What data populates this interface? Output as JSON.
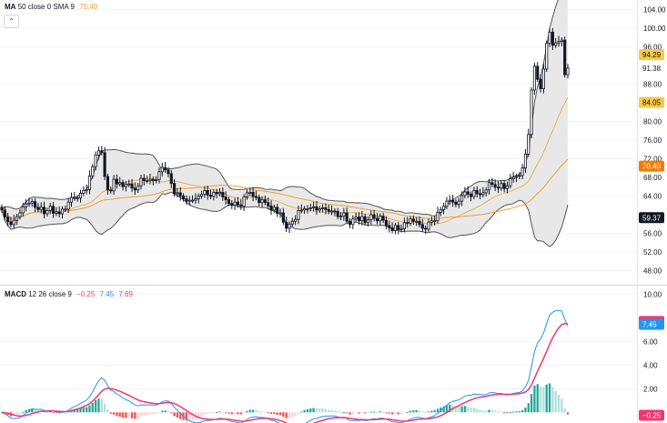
{
  "legend_top": {
    "ma": "MA",
    "params": "50 close 0 SMA 9",
    "value": "70.40"
  },
  "legend_bottom": {
    "macd": "MACD",
    "params": "12 26 close 9",
    "hist": "−0.25",
    "macd_val": "7.45",
    "signal": "7.69"
  },
  "colors": {
    "up_candle": "#ffffff",
    "down_candle": "#131722",
    "ma": "#f0a030",
    "band": "#555555",
    "band_fill": "#e6e6e6",
    "macd_line": "#2196f3",
    "signal_line": "#f23670",
    "hist_up_strong": "#26a69a",
    "hist_up_weak": "#b2dfdb",
    "hist_down_strong": "#ef5350",
    "hist_down_weak": "#ffcdd2",
    "grid": "#f0f3fa"
  },
  "chart_data": [
    {
      "type": "candlestick",
      "title": "MA 50 close 0 SMA 9",
      "y_ticks": [
        104,
        100,
        96,
        88,
        80,
        76,
        72,
        68,
        64,
        56,
        52,
        48
      ],
      "ylim": [
        45,
        106
      ],
      "price_labels": [
        {
          "value": 94.29,
          "label": "94.29",
          "bg": "#f7c948"
        },
        {
          "value": 91.38,
          "label": "91.38",
          "bg": "#ffffff"
        },
        {
          "value": 84.05,
          "label": "84.05",
          "bg": "#f7c948"
        },
        {
          "value": 70.4,
          "label": "70.40",
          "bg": "#f57c00"
        },
        {
          "value": 59.37,
          "label": "59.37",
          "bg": "#131722"
        }
      ],
      "close": [
        61.0,
        59.5,
        58.5,
        57.9,
        58.8,
        59.6,
        60.4,
        61.7,
        62.3,
        62.5,
        62.8,
        61.6,
        61.1,
        61.6,
        60.2,
        60.9,
        61.8,
        60.3,
        60.6,
        60.2,
        61.2,
        61.2,
        62.7,
        63.7,
        63.6,
        63.6,
        64.6,
        65.2,
        65.4,
        68.3,
        70.3,
        72.8,
        73.7,
        73.3,
        68.2,
        65.3,
        65.1,
        67.6,
        66.6,
        66.9,
        66.0,
        66.5,
        66.6,
        65.7,
        65.3,
        66.2,
        67.8,
        67.3,
        67.3,
        67.6,
        67.3,
        67.5,
        69.2,
        70.1,
        69.6,
        68.8,
        66.7,
        64.5,
        64.7,
        64.0,
        63.4,
        62.9,
        63.1,
        63.1,
        63.4,
        64.0,
        64.4,
        65.2,
        64.2,
        63.9,
        64.8,
        64.5,
        64.8,
        63.8,
        63.2,
        62.4,
        62.0,
        62.7,
        62.1,
        61.8,
        63.8,
        64.7,
        64.8,
        63.9,
        63.7,
        62.6,
        63.2,
        62.6,
        61.9,
        61.0,
        61.6,
        60.3,
        60.4,
        58.4,
        57.1,
        58.0,
        58.6,
        59.0,
        60.9,
        61.0,
        61.3,
        61.3,
        61.5,
        61.7,
        61.0,
        61.3,
        61.5,
        61.1,
        60.7,
        60.8,
        60.7,
        59.6,
        59.7,
        60.4,
        58.6,
        57.9,
        59.1,
        59.5,
        58.7,
        59.6,
        58.3,
        58.9,
        60.0,
        59.2,
        58.7,
        59.7,
        58.8,
        57.7,
        57.2,
        56.6,
        57.7,
        56.8,
        57.0,
        58.3,
        58.2,
        59.1,
        58.6,
        58.6,
        57.9,
        57.1,
        56.9,
        58.4,
        58.7,
        58.7,
        60.5,
        61.1,
        61.8,
        62.9,
        63.1,
        62.7,
        62.2,
        62.9,
        64.1,
        64.9,
        64.4,
        63.9,
        65.2,
        64.5,
        64.3,
        64.7,
        65.3,
        66.9,
        66.5,
        65.9,
        65.7,
        66.7,
        65.6,
        66.2,
        67.7,
        68.0,
        68.2,
        68.4,
        70.0,
        73.0,
        77.2,
        86.7,
        91.8,
        89.0,
        87.0,
        91.2,
        96.7,
        99.1,
        96.3,
        96.8,
        97.1,
        97.4,
        90.0,
        91.4
      ],
      "ma_period": 50,
      "bb_period": 20,
      "bb_mult": 2
    },
    {
      "type": "macd",
      "title": "MACD 12 26 close 9",
      "y_ticks": [
        10.0,
        6.0,
        4.0,
        2.0
      ],
      "y_tick_labels": [
        "10.00",
        "6.00",
        "4.00",
        "2.00"
      ],
      "ylim": [
        -0.9,
        10.8
      ],
      "value_labels": [
        {
          "value": 7.69,
          "label": "7.69",
          "bg": "#f23670"
        },
        {
          "value": 7.45,
          "label": "7.45",
          "bg": "#2196f3"
        },
        {
          "value": -0.25,
          "label": "−0.25",
          "bg": "#f23670"
        }
      ],
      "fast": 12,
      "slow": 26,
      "signal": 9
    }
  ]
}
